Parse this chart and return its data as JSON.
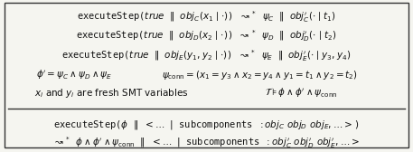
{
  "bg_color": "#f5f5f0",
  "border_color": "#333333",
  "line_color": "#333333",
  "text_color": "#111111",
  "figsize": [
    4.57,
    1.68
  ],
  "dpi": 100,
  "lines_above": [
    "executeStep($\\mathit{true}$ $\\|$ $\\mathit{obj}_C(x_1 \\mid {\\cdot})$) $\\rightsquigarrow^*$ $\\psi_C$ $\\|$ $\\mathit{obj}_C^{\\prime}(\\cdot \\mid t_1)$",
    "executeStep($\\mathit{true}$ $\\|$ $\\mathit{obj}_D(x_2 \\mid {\\cdot})$) $\\rightsquigarrow^*$ $\\psi_D$ $\\|$ $\\mathit{obj}_D^{\\prime}(\\cdot \\mid t_2)$",
    "executeStep($\\mathit{true}$ $\\|$ $\\mathit{obj}_E(y_1, y_2 \\mid {\\cdot})$) $\\rightsquigarrow^*$ $\\psi_E$ $\\|$ $\\mathit{obj}_E^{\\prime}(\\cdot \\mid y_3, y_4)$"
  ],
  "line4_left": "$\\phi^{\\prime} = \\psi_C \\wedge \\psi_D \\wedge \\psi_E$",
  "line4_right": "$\\psi_{\\mathrm{conn}} = (x_1 = y_3 \\wedge x_2 = y_4 \\wedge y_1 = t_1 \\wedge y_2 = t_2)$",
  "line5_left": "$x_i$ and $y_i$ are fresh SMT variables",
  "line5_right": "$\\mathcal{T} \\models \\phi \\wedge \\phi^{\\prime} \\wedge \\psi_{\\mathrm{conn}}$",
  "lines_below": [
    "executeStep($\\phi$ $\\|$ $< \\ldots$ $|$ subcomponents $: \\mathit{obj}_C\\ \\mathit{obj}_D\\ \\mathit{obj}_E, \\ldots >$)",
    "$\\rightsquigarrow^*$ $\\phi \\wedge \\phi^{\\prime} \\wedge \\psi_{\\mathrm{conn}}$ $\\|$ $< \\ldots$ $|$ subcomponents $: \\mathit{obj}_C^{\\prime}\\ \\mathit{obj}_D^{\\prime}\\ \\mathit{obj}_E^{\\prime}, \\ldots >$"
  ],
  "font_size_main": 7.5,
  "font_size_small": 7.0
}
